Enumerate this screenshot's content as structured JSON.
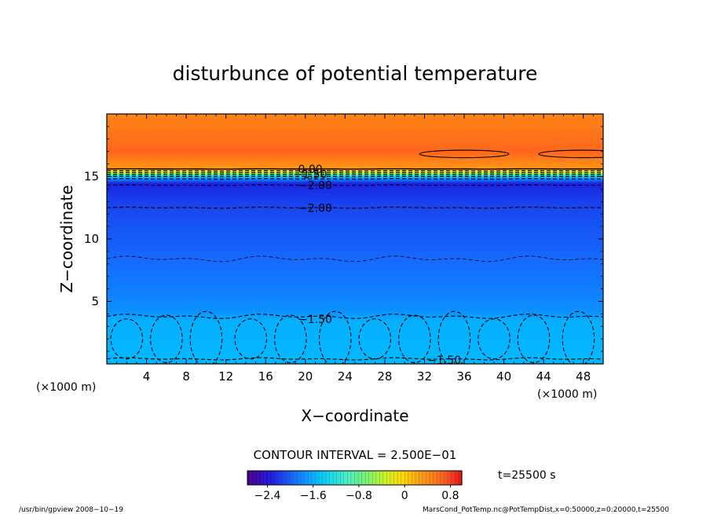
{
  "chart_data": {
    "type": "heatmap",
    "title": "disturbunce of potential temperature",
    "xlabel": "X−coordinate",
    "ylabel": "Z−coordinate",
    "x_unit": "(×1000 m)",
    "x_unit_right": "(×1000 m)",
    "xlim": [
      0,
      50
    ],
    "ylim": [
      0,
      20
    ],
    "x_ticks": [
      4,
      8,
      12,
      16,
      20,
      24,
      28,
      32,
      36,
      40,
      44,
      48
    ],
    "y_ticks": [
      5,
      10,
      15
    ],
    "field_profile": [
      {
        "z": 0.0,
        "value": -1.55
      },
      {
        "z": 3.5,
        "value": -1.6
      },
      {
        "z": 4.2,
        "value": -1.75
      },
      {
        "z": 6.0,
        "value": -1.85
      },
      {
        "z": 8.5,
        "value": -1.95
      },
      {
        "z": 11.0,
        "value": -2.05
      },
      {
        "z": 13.0,
        "value": -2.15
      },
      {
        "z": 14.5,
        "value": -2.3
      },
      {
        "z": 15.0,
        "value": -1.5
      },
      {
        "z": 15.3,
        "value": -0.5
      },
      {
        "z": 15.6,
        "value": 0.3
      },
      {
        "z": 17.0,
        "value": 0.65
      },
      {
        "z": 20.0,
        "value": 0.45
      }
    ],
    "contour_labels": [
      {
        "text": "0.00",
        "x": 20.5,
        "z": 15.6
      },
      {
        "text": "−1.50",
        "x": 20.5,
        "z": 15.2
      },
      {
        "text": "−2.00",
        "x": 21.0,
        "z": 14.3
      },
      {
        "text": "−2.00",
        "x": 21.0,
        "z": 12.5
      },
      {
        "text": "−1.50",
        "x": 21.0,
        "z": 3.6
      },
      {
        "text": "−1.50",
        "x": 34.0,
        "z": 0.3
      }
    ],
    "contour_interval_label": "CONTOUR INTERVAL = 2.500E−01",
    "colorbar": {
      "min": -2.75,
      "max": 1.0,
      "tick_values": [
        -2.4,
        -1.6,
        -0.8,
        0,
        0.8
      ],
      "tick_labels": [
        "−2.4",
        "−1.6",
        "−0.8",
        "0",
        "0.8"
      ]
    },
    "time_label": "t=25500 s",
    "grid": false
  },
  "footer": {
    "left": "/usr/bin/gpview   2008−10−19",
    "right": "MarsCond_PotTemp.nc@PotTempDist,x=0:50000,z=0:20000,t=25500"
  }
}
